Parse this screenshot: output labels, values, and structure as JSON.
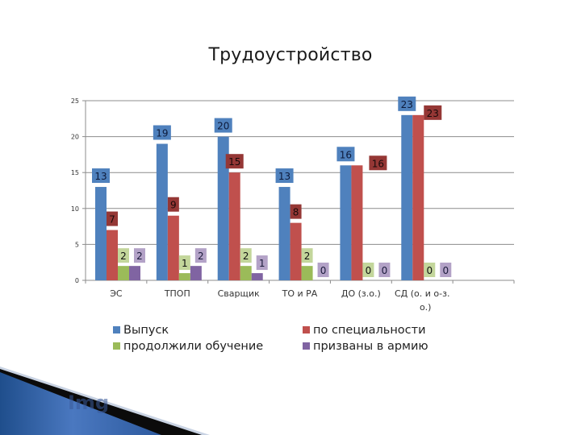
{
  "slide": {
    "title": "Трудоустройство",
    "watermark": "Img"
  },
  "chart_data": {
    "type": "bar",
    "title": "Трудоустройство",
    "xlabel": "",
    "ylabel": "",
    "ylim": [
      0,
      25
    ],
    "yticks": [
      0,
      5,
      10,
      15,
      20,
      25
    ],
    "grid": true,
    "legend_position": "bottom",
    "categories": [
      "ЭС",
      "ТПОП",
      "Сварщик",
      "ТО и РА",
      "ДО (з.о.)",
      "СД (о. и о-з. о.)"
    ],
    "category_lines": [
      [
        "ЭС"
      ],
      [
        "ТПОП"
      ],
      [
        "Сварщик"
      ],
      [
        "ТО и РА"
      ],
      [
        "ДО (з.о.)"
      ],
      [
        "СД (о. и о-з.",
        "о.)"
      ]
    ],
    "series": [
      {
        "name": "Выпуск",
        "color": "#4F81BD",
        "label_bg": "#4F81BD",
        "label_fg": "#0d1a3a",
        "values": [
          13,
          19,
          20,
          13,
          16,
          23
        ]
      },
      {
        "name": "по специальности",
        "color": "#C0504D",
        "label_bg": "#953735",
        "label_fg": "#1a0a0a",
        "values": [
          7,
          9,
          15,
          8,
          16,
          23
        ]
      },
      {
        "name": "продолжили обучение",
        "color": "#9BBB59",
        "label_bg": "#C3D69B",
        "label_fg": "#111111",
        "values": [
          2,
          1,
          2,
          2,
          0,
          0
        ]
      },
      {
        "name": "призваны в армию",
        "color": "#8064A2",
        "label_bg": "#B3A2C7",
        "label_fg": "#1a1a3a",
        "values": [
          2,
          2,
          1,
          0,
          0,
          0
        ]
      }
    ]
  },
  "legend": {
    "items": [
      {
        "label": "Выпуск",
        "color": "#4F81BD"
      },
      {
        "label": "по специальности",
        "color": "#C0504D"
      },
      {
        "label": "продолжили обучение",
        "color": "#9BBB59"
      },
      {
        "label": "призваны в армию",
        "color": "#8064A2"
      }
    ]
  }
}
